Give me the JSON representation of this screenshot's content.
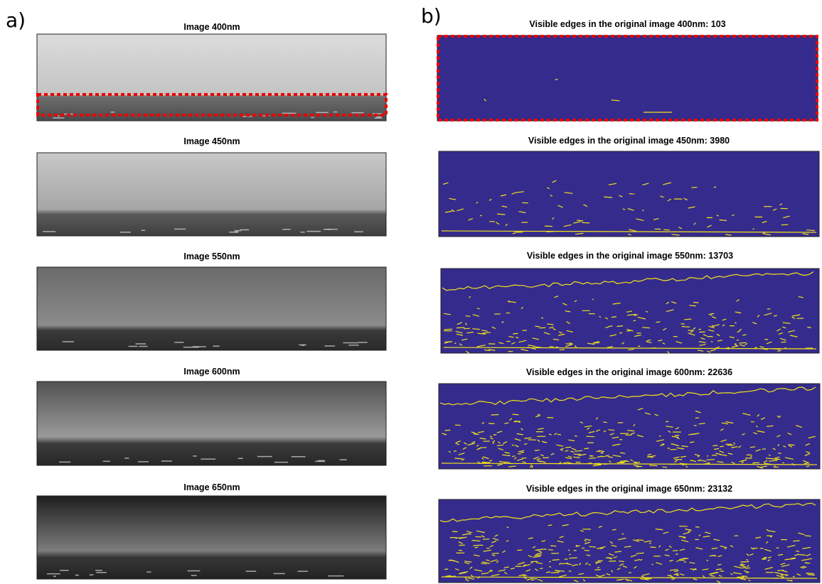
{
  "panel_a": {
    "label": "a)",
    "images": [
      {
        "title": "Image 400nm"
      },
      {
        "title": "Image 450nm"
      },
      {
        "title": "Image 550nm"
      },
      {
        "title": "Image 600nm"
      },
      {
        "title": "Image 650nm"
      }
    ]
  },
  "panel_b": {
    "label": "b)",
    "images": [
      {
        "title": "Visible edges in the original image 400nm: 103"
      },
      {
        "title": "Visible edges in the original image 450nm: 3980"
      },
      {
        "title": "Visible edges in the original image 550nm: 13703"
      },
      {
        "title": "Visible edges in the original image 600nm: 22636"
      },
      {
        "title": "Visible edges in the original image 650nm: 23132"
      }
    ]
  }
}
